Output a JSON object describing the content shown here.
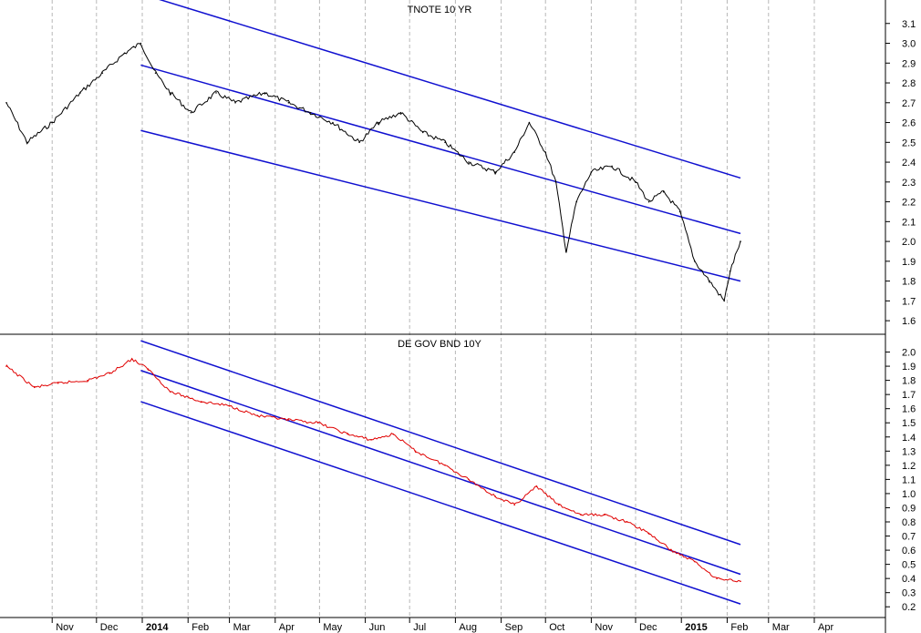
{
  "colors": {
    "background": "#ffffff",
    "grid": "#b8b8b8",
    "channel": "#1010d0",
    "series_top": "#000000",
    "series_bottom": "#e00000"
  },
  "chart_data": [
    {
      "type": "line",
      "title": "TNOTE 10 YR",
      "ylim": [
        1.55,
        3.2
      ],
      "ticks": [
        1.6,
        1.7,
        1.8,
        1.9,
        2.0,
        2.1,
        2.2,
        2.3,
        2.4,
        2.5,
        2.6,
        2.7,
        2.8,
        2.9,
        3.0,
        3.1
      ],
      "tick_labels": [
        "1.6",
        "1.7",
        "1.8",
        "1.9",
        "2.0",
        "2.1",
        "2.2",
        "2.3",
        "2.4",
        "2.5",
        "2.6",
        "2.7",
        "2.8",
        "2.9",
        "3.0",
        "3.1"
      ],
      "grid": "vertical-dashed",
      "series": [
        {
          "x": [
            "2013-10-01",
            "2013-10-15",
            "2013-11-01",
            "2013-11-20",
            "2013-12-05",
            "2013-12-20",
            "2013-12-31",
            "2014-01-10",
            "2014-01-20",
            "2014-02-03",
            "2014-02-20",
            "2014-03-05",
            "2014-03-25",
            "2014-04-10",
            "2014-04-25",
            "2014-05-10",
            "2014-05-28",
            "2014-06-10",
            "2014-06-25",
            "2014-07-10",
            "2014-07-25",
            "2014-08-10",
            "2014-08-28",
            "2014-09-10",
            "2014-09-20",
            "2014-10-01",
            "2014-10-08",
            "2014-10-15",
            "2014-10-22",
            "2014-11-01",
            "2014-11-15",
            "2014-12-01",
            "2014-12-10",
            "2014-12-20",
            "2014-12-31",
            "2015-01-10",
            "2015-01-20",
            "2015-01-30",
            "2015-02-03",
            "2015-02-10"
          ],
          "values": [
            2.7,
            2.5,
            2.6,
            2.75,
            2.85,
            2.95,
            3.0,
            2.85,
            2.75,
            2.65,
            2.75,
            2.7,
            2.75,
            2.7,
            2.65,
            2.6,
            2.5,
            2.6,
            2.65,
            2.55,
            2.5,
            2.4,
            2.35,
            2.45,
            2.6,
            2.45,
            2.3,
            1.95,
            2.2,
            2.35,
            2.38,
            2.3,
            2.2,
            2.25,
            2.15,
            1.9,
            1.8,
            1.7,
            1.85,
            2.0
          ]
        }
      ],
      "channel": {
        "start": "2013-12-31",
        "end": "2015-02-10",
        "upper": [
          3.25,
          2.32
        ],
        "middle": [
          2.89,
          2.04
        ],
        "lower": [
          2.56,
          1.8
        ]
      }
    },
    {
      "type": "line",
      "title": "DE GOV BND 10Y",
      "ylim": [
        0.15,
        2.1
      ],
      "ticks": [
        0.2,
        0.3,
        0.4,
        0.5,
        0.6,
        0.7,
        0.8,
        0.9,
        1.0,
        1.1,
        1.2,
        1.3,
        1.4,
        1.5,
        1.6,
        1.7,
        1.8,
        1.9,
        2.0
      ],
      "tick_labels": [
        "0.2",
        "0.3",
        "0.4",
        "0.5",
        "0.6",
        "0.7",
        "0.8",
        "0.9",
        "1.0",
        "1.1",
        "1.2",
        "1.3",
        "1.4",
        "1.5",
        "1.6",
        "1.7",
        "1.8",
        "1.9",
        "2.0"
      ],
      "grid": "vertical-dashed",
      "series": [
        {
          "x": [
            "2013-10-01",
            "2013-10-20",
            "2013-11-05",
            "2013-11-25",
            "2013-12-10",
            "2013-12-25",
            "2014-01-05",
            "2014-01-20",
            "2014-02-10",
            "2014-03-01",
            "2014-03-20",
            "2014-04-10",
            "2014-04-30",
            "2014-05-20",
            "2014-06-05",
            "2014-06-20",
            "2014-07-05",
            "2014-07-25",
            "2014-08-10",
            "2014-08-28",
            "2014-09-10",
            "2014-09-25",
            "2014-10-10",
            "2014-10-25",
            "2014-11-10",
            "2014-11-25",
            "2014-12-10",
            "2014-12-25",
            "2015-01-10",
            "2015-01-25",
            "2015-02-10"
          ],
          "values": [
            1.9,
            1.75,
            1.78,
            1.8,
            1.85,
            1.95,
            1.88,
            1.72,
            1.65,
            1.62,
            1.55,
            1.52,
            1.5,
            1.42,
            1.38,
            1.42,
            1.3,
            1.2,
            1.1,
            0.98,
            0.92,
            1.05,
            0.92,
            0.85,
            0.85,
            0.8,
            0.72,
            0.6,
            0.52,
            0.4,
            0.38
          ]
        }
      ],
      "channel": {
        "start": "2013-12-31",
        "end": "2015-02-10",
        "upper": [
          2.08,
          0.64
        ],
        "middle": [
          1.87,
          0.43
        ],
        "lower": [
          1.65,
          0.22
        ]
      }
    }
  ],
  "x_axis": {
    "months": [
      {
        "date": "2013-11-01",
        "label": "Nov",
        "bold": false
      },
      {
        "date": "2013-12-01",
        "label": "Dec",
        "bold": false
      },
      {
        "date": "2014-01-01",
        "label": "2014",
        "bold": true
      },
      {
        "date": "2014-02-01",
        "label": "Feb",
        "bold": false
      },
      {
        "date": "2014-03-01",
        "label": "Mar",
        "bold": false
      },
      {
        "date": "2014-04-01",
        "label": "Apr",
        "bold": false
      },
      {
        "date": "2014-05-01",
        "label": "May",
        "bold": false
      },
      {
        "date": "2014-06-01",
        "label": "Jun",
        "bold": false
      },
      {
        "date": "2014-07-01",
        "label": "Jul",
        "bold": false
      },
      {
        "date": "2014-08-01",
        "label": "Aug",
        "bold": false
      },
      {
        "date": "2014-09-01",
        "label": "Sep",
        "bold": false
      },
      {
        "date": "2014-10-01",
        "label": "Oct",
        "bold": false
      },
      {
        "date": "2014-11-01",
        "label": "Nov",
        "bold": false
      },
      {
        "date": "2014-12-01",
        "label": "Dec",
        "bold": false
      },
      {
        "date": "2015-01-01",
        "label": "2015",
        "bold": true
      },
      {
        "date": "2015-02-01",
        "label": "Feb",
        "bold": false
      },
      {
        "date": "2015-03-01",
        "label": "Mar",
        "bold": false
      },
      {
        "date": "2015-04-01",
        "label": "Apr",
        "bold": false
      }
    ]
  }
}
